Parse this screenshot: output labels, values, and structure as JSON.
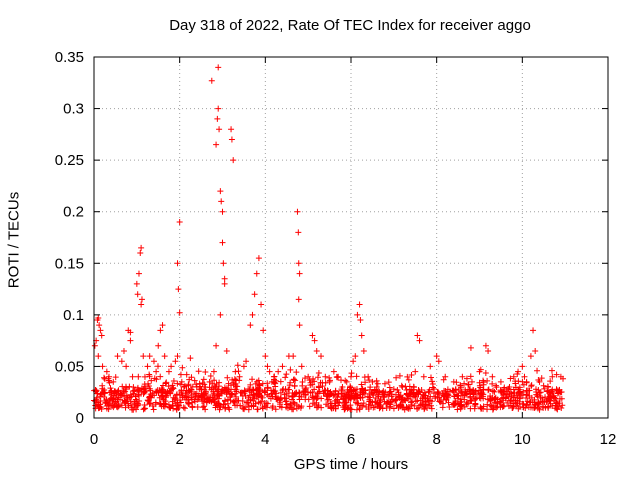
{
  "chart_data": {
    "type": "scatter",
    "title": "Day 318 of 2022, Rate Of TEC Index for receiver aggo",
    "xlabel": "GPS time / hours",
    "ylabel": "ROTI / TECUs",
    "xlim": [
      0,
      12
    ],
    "ylim": [
      0,
      0.35
    ],
    "xticks": [
      0,
      2,
      4,
      6,
      8,
      10,
      12
    ],
    "yticks": [
      0,
      0.05,
      0.1,
      0.15,
      0.2,
      0.25,
      0.3,
      0.35
    ],
    "xtick_labels": [
      "0",
      "2",
      "4",
      "6",
      "8",
      "10",
      "12"
    ],
    "ytick_labels": [
      "0",
      "0.05",
      "0.1",
      "0.15",
      "0.2",
      "0.25",
      "0.3",
      "0.35"
    ],
    "grid": true,
    "marker": "+",
    "color": "#ff0000",
    "series": [
      {
        "name": "ROTI",
        "points": [
          [
            0.02,
            0.07
          ],
          [
            0.05,
            0.075
          ],
          [
            0.08,
            0.095
          ],
          [
            0.1,
            0.097
          ],
          [
            0.12,
            0.09
          ],
          [
            0.15,
            0.085
          ],
          [
            0.18,
            0.08
          ],
          [
            0.1,
            0.06
          ],
          [
            0.2,
            0.05
          ],
          [
            0.3,
            0.045
          ],
          [
            0.35,
            0.04
          ],
          [
            0.45,
            0.035
          ],
          [
            0.55,
            0.06
          ],
          [
            0.65,
            0.055
          ],
          [
            0.7,
            0.065
          ],
          [
            0.75,
            0.05
          ],
          [
            0.8,
            0.085
          ],
          [
            0.85,
            0.083
          ],
          [
            0.85,
            0.075
          ],
          [
            0.9,
            0.04
          ],
          [
            1.0,
            0.13
          ],
          [
            1.02,
            0.12
          ],
          [
            1.05,
            0.14
          ],
          [
            1.08,
            0.16
          ],
          [
            1.1,
            0.165
          ],
          [
            1.12,
            0.115
          ],
          [
            1.1,
            0.11
          ],
          [
            1.15,
            0.06
          ],
          [
            1.25,
            0.05
          ],
          [
            1.3,
            0.06
          ],
          [
            1.4,
            0.055
          ],
          [
            1.45,
            0.045
          ],
          [
            1.5,
            0.07
          ],
          [
            1.55,
            0.085
          ],
          [
            1.6,
            0.09
          ],
          [
            1.65,
            0.06
          ],
          [
            1.75,
            0.045
          ],
          [
            1.8,
            0.05
          ],
          [
            1.9,
            0.055
          ],
          [
            1.95,
            0.06
          ],
          [
            1.95,
            0.15
          ],
          [
            1.97,
            0.125
          ],
          [
            2.0,
            0.19
          ],
          [
            2.0,
            0.102
          ],
          [
            2.03,
            0.042
          ],
          [
            2.05,
            0.035
          ],
          [
            2.1,
            0.03
          ],
          [
            2.2,
            0.025
          ],
          [
            2.4,
            0.03
          ],
          [
            2.5,
            0.028
          ],
          [
            2.6,
            0.03
          ],
          [
            2.7,
            0.035
          ],
          [
            2.75,
            0.327
          ],
          [
            2.8,
            0.045
          ],
          [
            2.85,
            0.07
          ],
          [
            2.85,
            0.265
          ],
          [
            2.88,
            0.29
          ],
          [
            2.9,
            0.3
          ],
          [
            2.9,
            0.34
          ],
          [
            2.92,
            0.28
          ],
          [
            2.95,
            0.22
          ],
          [
            2.95,
            0.1
          ],
          [
            2.97,
            0.21
          ],
          [
            3.0,
            0.2
          ],
          [
            3.0,
            0.17
          ],
          [
            3.02,
            0.15
          ],
          [
            3.05,
            0.13
          ],
          [
            3.05,
            0.135
          ],
          [
            3.1,
            0.065
          ],
          [
            3.2,
            0.28
          ],
          [
            3.22,
            0.27
          ],
          [
            3.25,
            0.25
          ],
          [
            3.3,
            0.045
          ],
          [
            3.4,
            0.04
          ],
          [
            3.5,
            0.05
          ],
          [
            3.55,
            0.055
          ],
          [
            3.65,
            0.09
          ],
          [
            3.7,
            0.1
          ],
          [
            3.75,
            0.12
          ],
          [
            3.8,
            0.14
          ],
          [
            3.85,
            0.155
          ],
          [
            3.9,
            0.11
          ],
          [
            3.95,
            0.085
          ],
          [
            4.0,
            0.06
          ],
          [
            4.05,
            0.05
          ],
          [
            4.1,
            0.045
          ],
          [
            4.2,
            0.04
          ],
          [
            4.3,
            0.045
          ],
          [
            4.4,
            0.05
          ],
          [
            4.55,
            0.06
          ],
          [
            4.65,
            0.06
          ],
          [
            4.75,
            0.2
          ],
          [
            4.77,
            0.18
          ],
          [
            4.78,
            0.15
          ],
          [
            4.8,
            0.14
          ],
          [
            4.78,
            0.115
          ],
          [
            4.8,
            0.09
          ],
          [
            4.85,
            0.05
          ],
          [
            5.0,
            0.04
          ],
          [
            5.1,
            0.08
          ],
          [
            5.15,
            0.075
          ],
          [
            5.2,
            0.065
          ],
          [
            5.3,
            0.06
          ],
          [
            5.4,
            0.04
          ],
          [
            5.5,
            0.035
          ],
          [
            5.6,
            0.045
          ],
          [
            5.7,
            0.04
          ],
          [
            5.8,
            0.03
          ],
          [
            5.9,
            0.035
          ],
          [
            6.0,
            0.04
          ],
          [
            6.05,
            0.055
          ],
          [
            6.1,
            0.06
          ],
          [
            6.15,
            0.1
          ],
          [
            6.2,
            0.11
          ],
          [
            6.22,
            0.095
          ],
          [
            6.25,
            0.08
          ],
          [
            6.3,
            0.065
          ],
          [
            6.4,
            0.04
          ],
          [
            6.5,
            0.035
          ],
          [
            6.6,
            0.03
          ],
          [
            6.8,
            0.025
          ],
          [
            7.0,
            0.028
          ],
          [
            7.2,
            0.03
          ],
          [
            7.35,
            0.037
          ],
          [
            7.5,
            0.045
          ],
          [
            7.55,
            0.08
          ],
          [
            7.6,
            0.075
          ],
          [
            7.7,
            0.04
          ],
          [
            7.85,
            0.05
          ],
          [
            8.0,
            0.06
          ],
          [
            8.05,
            0.055
          ],
          [
            8.2,
            0.04
          ],
          [
            8.4,
            0.035
          ],
          [
            8.6,
            0.04
          ],
          [
            8.8,
            0.068
          ],
          [
            9.0,
            0.045
          ],
          [
            9.15,
            0.07
          ],
          [
            9.2,
            0.065
          ],
          [
            9.3,
            0.04
          ],
          [
            9.5,
            0.035
          ],
          [
            9.7,
            0.03
          ],
          [
            9.8,
            0.04
          ],
          [
            9.9,
            0.045
          ],
          [
            10.0,
            0.05
          ],
          [
            10.05,
            0.04
          ],
          [
            10.1,
            0.035
          ],
          [
            10.2,
            0.06
          ],
          [
            10.25,
            0.085
          ],
          [
            10.3,
            0.065
          ],
          [
            10.4,
            0.035
          ],
          [
            10.6,
            0.03
          ],
          [
            10.7,
            0.04
          ],
          [
            10.8,
            0.042
          ],
          [
            10.9,
            0.04
          ],
          [
            10.95,
            0.038
          ]
        ]
      }
    ]
  }
}
